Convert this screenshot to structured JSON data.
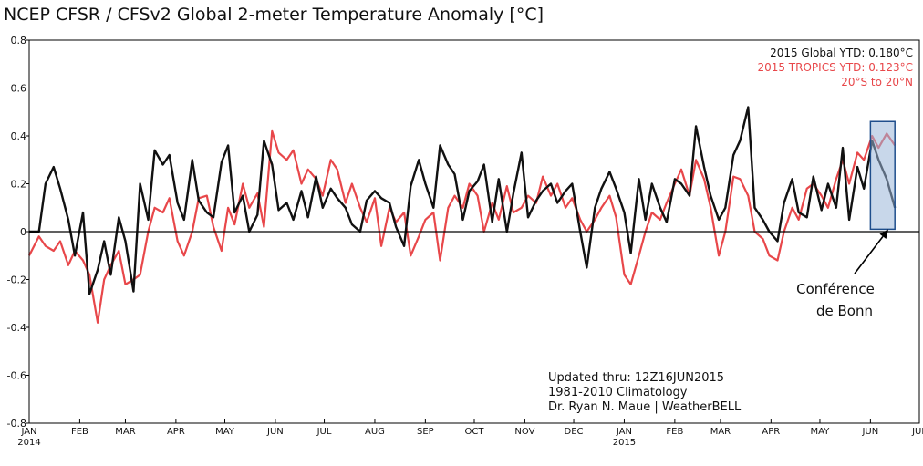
{
  "chart_data": {
    "type": "line",
    "title": "NCEP CFSR / CFSv2 Global 2-meter Temperature Anomaly [°C]",
    "ylim": [
      -0.8,
      0.8
    ],
    "yticks": [
      "0.8",
      "0.6",
      "0.4",
      "0.2",
      "0",
      "-0.2",
      "-0.4",
      "-0.6",
      "-0.8"
    ],
    "ytick_values": [
      0.8,
      0.6,
      0.4,
      0.2,
      0,
      -0.2,
      -0.4,
      -0.6,
      -0.8
    ],
    "xlim": [
      "2014-01-01",
      "2015-07-01"
    ],
    "xticks": [
      "JAN",
      "FEB",
      "MAR",
      "APR",
      "MAY",
      "JUN",
      "JUL",
      "AUG",
      "SEP",
      "OCT",
      "NOV",
      "DEC",
      "JAN",
      "FEB",
      "MAR",
      "APR",
      "MAY",
      "JUN",
      "JUL"
    ],
    "xtick_dates": [
      "2014-01-01",
      "2014-02-01",
      "2014-03-01",
      "2014-04-01",
      "2014-05-01",
      "2014-06-01",
      "2014-07-01",
      "2014-08-01",
      "2014-09-01",
      "2014-10-01",
      "2014-11-01",
      "2014-12-01",
      "2015-01-01",
      "2015-02-01",
      "2015-03-01",
      "2015-04-01",
      "2015-05-01",
      "2015-06-01",
      "2015-07-01"
    ],
    "year_labels": [
      {
        "date": "2014-01-01",
        "label": "2014"
      },
      {
        "date": "2015-01-01",
        "label": "2015"
      }
    ],
    "grid": false,
    "series": [
      {
        "name": "2015 Global YTD: 0.180°C",
        "color": "#111111",
        "x": [
          "2014-01-01",
          "2014-01-07",
          "2014-01-11",
          "2014-01-16",
          "2014-01-20",
          "2014-01-25",
          "2014-01-29",
          "2014-02-03",
          "2014-02-07",
          "2014-02-12",
          "2014-02-16",
          "2014-02-20",
          "2014-02-25",
          "2014-03-01",
          "2014-03-06",
          "2014-03-10",
          "2014-03-15",
          "2014-03-19",
          "2014-03-24",
          "2014-03-28",
          "2014-04-02",
          "2014-04-06",
          "2014-04-11",
          "2014-04-15",
          "2014-04-20",
          "2014-04-24",
          "2014-04-29",
          "2014-05-03",
          "2014-05-07",
          "2014-05-12",
          "2014-05-16",
          "2014-05-21",
          "2014-05-25",
          "2014-05-30",
          "2014-06-03",
          "2014-06-08",
          "2014-06-12",
          "2014-06-17",
          "2014-06-21",
          "2014-06-26",
          "2014-06-30",
          "2014-07-05",
          "2014-07-09",
          "2014-07-14",
          "2014-07-18",
          "2014-07-23",
          "2014-07-27",
          "2014-08-01",
          "2014-08-05",
          "2014-08-10",
          "2014-08-14",
          "2014-08-19",
          "2014-08-23",
          "2014-08-28",
          "2014-09-01",
          "2014-09-06",
          "2014-09-10",
          "2014-09-15",
          "2014-09-19",
          "2014-09-24",
          "2014-09-28",
          "2014-10-03",
          "2014-10-07",
          "2014-10-12",
          "2014-10-16",
          "2014-10-21",
          "2014-10-25",
          "2014-10-30",
          "2014-11-03",
          "2014-11-08",
          "2014-11-12",
          "2014-11-17",
          "2014-11-21",
          "2014-11-26",
          "2014-11-30",
          "2014-12-05",
          "2014-12-09",
          "2014-12-14",
          "2014-12-18",
          "2014-12-23",
          "2014-12-27",
          "2015-01-01",
          "2015-01-05",
          "2015-01-10",
          "2015-01-14",
          "2015-01-18",
          "2015-01-23",
          "2015-01-27",
          "2015-02-01",
          "2015-02-05",
          "2015-02-10",
          "2015-02-14",
          "2015-02-19",
          "2015-02-23",
          "2015-02-28",
          "2015-03-04",
          "2015-03-09",
          "2015-03-13",
          "2015-03-18",
          "2015-03-22",
          "2015-03-27",
          "2015-03-31",
          "2015-04-05",
          "2015-04-09",
          "2015-04-14",
          "2015-04-18",
          "2015-04-23",
          "2015-04-27",
          "2015-05-02",
          "2015-05-06",
          "2015-05-11",
          "2015-05-15",
          "2015-05-19",
          "2015-05-24",
          "2015-05-28",
          "2015-06-02",
          "2015-06-06",
          "2015-06-11",
          "2015-06-16"
        ],
        "y": [
          0.0,
          0.0,
          0.2,
          0.27,
          0.18,
          0.05,
          -0.1,
          0.08,
          -0.26,
          -0.16,
          -0.04,
          -0.18,
          0.06,
          -0.04,
          -0.25,
          0.2,
          0.05,
          0.34,
          0.28,
          0.32,
          0.12,
          0.05,
          0.3,
          0.13,
          0.08,
          0.06,
          0.29,
          0.36,
          0.08,
          0.15,
          0.0,
          0.07,
          0.38,
          0.28,
          0.09,
          0.12,
          0.05,
          0.17,
          0.06,
          0.23,
          0.1,
          0.18,
          0.14,
          0.1,
          0.03,
          0.0,
          0.13,
          0.17,
          0.14,
          0.12,
          0.02,
          -0.06,
          0.19,
          0.3,
          0.2,
          0.1,
          0.36,
          0.28,
          0.24,
          0.05,
          0.17,
          0.21,
          0.28,
          0.04,
          0.22,
          0.0,
          0.16,
          0.33,
          0.06,
          0.13,
          0.17,
          0.2,
          0.12,
          0.17,
          0.2,
          0.0,
          -0.15,
          0.1,
          0.18,
          0.25,
          0.18,
          0.08,
          -0.09,
          0.22,
          0.05,
          0.2,
          0.1,
          0.04,
          0.22,
          0.2,
          0.15,
          0.44,
          0.27,
          0.15,
          0.05,
          0.1,
          0.32,
          0.38,
          0.52,
          0.1,
          0.05,
          0.0,
          -0.04,
          0.12,
          0.22,
          0.08,
          0.06,
          0.23,
          0.09,
          0.2,
          0.1,
          0.35,
          0.05,
          0.27,
          0.18,
          0.38,
          0.3,
          0.22,
          0.1
        ]
      },
      {
        "name": "2015 TROPICS YTD: 0.123°C",
        "label_line2": "20°S to 20°N",
        "color": "#e8474a",
        "x": [
          "2014-01-01",
          "2014-01-07",
          "2014-01-11",
          "2014-01-16",
          "2014-01-20",
          "2014-01-25",
          "2014-01-29",
          "2014-02-03",
          "2014-02-07",
          "2014-02-12",
          "2014-02-16",
          "2014-02-20",
          "2014-02-25",
          "2014-03-01",
          "2014-03-06",
          "2014-03-10",
          "2014-03-15",
          "2014-03-19",
          "2014-03-24",
          "2014-03-28",
          "2014-04-02",
          "2014-04-06",
          "2014-04-11",
          "2014-04-15",
          "2014-04-20",
          "2014-04-24",
          "2014-04-29",
          "2014-05-03",
          "2014-05-07",
          "2014-05-12",
          "2014-05-16",
          "2014-05-21",
          "2014-05-25",
          "2014-05-30",
          "2014-06-03",
          "2014-06-08",
          "2014-06-12",
          "2014-06-17",
          "2014-06-21",
          "2014-06-26",
          "2014-06-30",
          "2014-07-05",
          "2014-07-09",
          "2014-07-14",
          "2014-07-18",
          "2014-07-23",
          "2014-07-27",
          "2014-08-01",
          "2014-08-05",
          "2014-08-10",
          "2014-08-14",
          "2014-08-19",
          "2014-08-23",
          "2014-08-28",
          "2014-09-01",
          "2014-09-06",
          "2014-09-10",
          "2014-09-15",
          "2014-09-19",
          "2014-09-24",
          "2014-09-28",
          "2014-10-03",
          "2014-10-07",
          "2014-10-12",
          "2014-10-16",
          "2014-10-21",
          "2014-10-25",
          "2014-10-30",
          "2014-11-03",
          "2014-11-08",
          "2014-11-12",
          "2014-11-17",
          "2014-11-21",
          "2014-11-26",
          "2014-11-30",
          "2014-12-05",
          "2014-12-09",
          "2014-12-14",
          "2014-12-18",
          "2014-12-23",
          "2014-12-27",
          "2015-01-01",
          "2015-01-05",
          "2015-01-10",
          "2015-01-14",
          "2015-01-18",
          "2015-01-23",
          "2015-01-27",
          "2015-02-01",
          "2015-02-05",
          "2015-02-10",
          "2015-02-14",
          "2015-02-19",
          "2015-02-23",
          "2015-02-28",
          "2015-03-04",
          "2015-03-09",
          "2015-03-13",
          "2015-03-18",
          "2015-03-22",
          "2015-03-27",
          "2015-03-31",
          "2015-04-05",
          "2015-04-09",
          "2015-04-14",
          "2015-04-18",
          "2015-04-23",
          "2015-04-27",
          "2015-05-02",
          "2015-05-06",
          "2015-05-11",
          "2015-05-15",
          "2015-05-19",
          "2015-05-24",
          "2015-05-28",
          "2015-06-02",
          "2015-06-06",
          "2015-06-11",
          "2015-06-16"
        ],
        "y": [
          -0.1,
          -0.02,
          -0.06,
          -0.08,
          -0.04,
          -0.14,
          -0.08,
          -0.12,
          -0.18,
          -0.38,
          -0.2,
          -0.14,
          -0.08,
          -0.22,
          -0.2,
          -0.18,
          0.0,
          0.1,
          0.08,
          0.14,
          -0.04,
          -0.1,
          0.0,
          0.14,
          0.15,
          0.02,
          -0.08,
          0.1,
          0.03,
          0.2,
          0.1,
          0.16,
          0.02,
          0.42,
          0.33,
          0.3,
          0.34,
          0.2,
          0.26,
          0.22,
          0.15,
          0.3,
          0.26,
          0.12,
          0.2,
          0.1,
          0.04,
          0.14,
          -0.06,
          0.1,
          0.04,
          0.08,
          -0.1,
          -0.02,
          0.05,
          0.08,
          -0.12,
          0.1,
          0.15,
          0.1,
          0.2,
          0.15,
          0.0,
          0.12,
          0.05,
          0.19,
          0.08,
          0.1,
          0.15,
          0.12,
          0.23,
          0.15,
          0.2,
          0.1,
          0.14,
          0.05,
          0.0,
          0.05,
          0.1,
          0.15,
          0.06,
          -0.18,
          -0.22,
          -0.1,
          0.0,
          0.08,
          0.05,
          0.12,
          0.2,
          0.26,
          0.15,
          0.3,
          0.22,
          0.1,
          -0.1,
          0.0,
          0.23,
          0.22,
          0.15,
          0.0,
          -0.03,
          -0.1,
          -0.12,
          0.0,
          0.1,
          0.05,
          0.18,
          0.2,
          0.15,
          0.1,
          0.22,
          0.3,
          0.2,
          0.33,
          0.3,
          0.4,
          0.35,
          0.41,
          0.36
        ]
      }
    ],
    "credit_lines": [
      "Updated thru: 12Z16JUN2015",
      "1981-2010 Climatology",
      "Dr. Ryan N. Maue | WeatherBELL"
    ],
    "annotation": {
      "line1": "Conférence",
      "line2": "de Bonn",
      "box_from": "2015-06-01",
      "box_to": "2015-06-16",
      "box_ylim": [
        0.01,
        0.46
      ],
      "arrow_to": {
        "date": "2015-06-12",
        "y": 0.01
      }
    }
  }
}
